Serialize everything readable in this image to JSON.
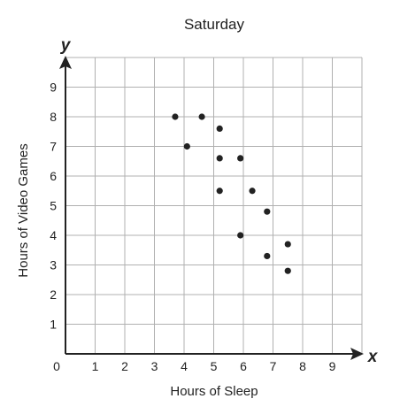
{
  "chart_data": {
    "type": "scatter",
    "title": "Saturday",
    "xlabel": "Hours of Sleep",
    "ylabel": "Hours of Video Games",
    "x_axis_symbol": "x",
    "y_axis_symbol": "y",
    "xlim": [
      0,
      10
    ],
    "ylim": [
      0,
      10
    ],
    "origin_label": "0",
    "x_ticks": [
      "1",
      "2",
      "3",
      "4",
      "5",
      "6",
      "7",
      "8",
      "9"
    ],
    "y_ticks": [
      "1",
      "2",
      "3",
      "4",
      "5",
      "6",
      "7",
      "8",
      "9"
    ],
    "grid": true,
    "legend": "none",
    "colors": {
      "grid": "#b0b0b0",
      "axis": "#222222",
      "point": "#222222"
    },
    "series": [
      {
        "points": [
          {
            "x": 3.7,
            "y": 8.0
          },
          {
            "x": 4.1,
            "y": 7.0
          },
          {
            "x": 4.6,
            "y": 8.0
          },
          {
            "x": 5.2,
            "y": 7.6
          },
          {
            "x": 5.2,
            "y": 6.6
          },
          {
            "x": 5.2,
            "y": 5.5
          },
          {
            "x": 5.9,
            "y": 6.6
          },
          {
            "x": 5.9,
            "y": 4.0
          },
          {
            "x": 6.3,
            "y": 5.5
          },
          {
            "x": 6.8,
            "y": 4.8
          },
          {
            "x": 6.8,
            "y": 3.3
          },
          {
            "x": 7.5,
            "y": 3.7
          },
          {
            "x": 7.5,
            "y": 2.8
          }
        ]
      }
    ]
  }
}
